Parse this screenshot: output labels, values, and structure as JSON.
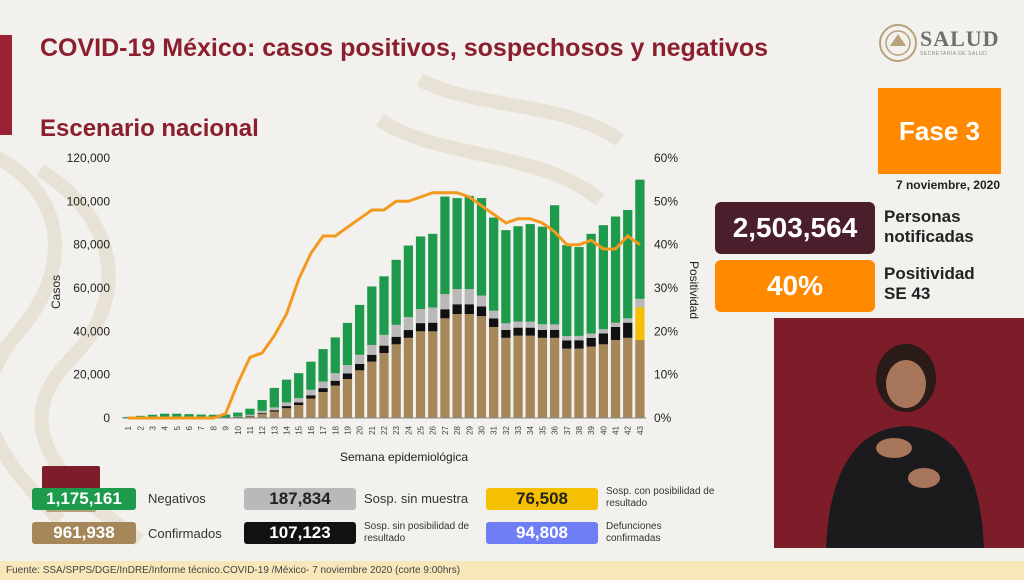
{
  "title": "COVID-19 México: casos positivos, sospechosos y negativos",
  "subtitle": "Escenario nacional",
  "logo": {
    "name": "SALUD",
    "sub": "SECRETARÍA DE SALUD",
    "icon": "eagle-seal-icon"
  },
  "phase": "Fase 3",
  "date": "7 noviembre, 2020",
  "stats": {
    "notified_value": "2,503,564",
    "notified_label_line1": "Personas",
    "notified_label_line2": "notificadas",
    "positivity_value": "40%",
    "positivity_label_line1": "Positividad",
    "positivity_label_line2": "SE 43"
  },
  "legend": {
    "negativos_value": "1,175,161",
    "negativos_label": "Negativos",
    "confirmados_value": "961,938",
    "confirmados_label": "Confirmados",
    "sosp_sin_muestra_value": "187,834",
    "sosp_sin_muestra_label": "Sosp. sin muestra",
    "sosp_sin_posibilidad_value": "107,123",
    "sosp_sin_posibilidad_label": "Sosp. sin posibilidad de resultado",
    "sosp_con_posibilidad_value": "76,508",
    "sosp_con_posibilidad_label": "Sosp. con posibilidad de resultado",
    "defunciones_value": "94,808",
    "defunciones_label": "Defunciones confirmadas"
  },
  "footer": "Fuente: SSA/SPPS/DGE/InDRE/Informe técnico.COVID-19 /México- 7 noviembre 2020 (corte 9:00hrs)",
  "colors": {
    "confirmados": "#a6875a",
    "sosp_sin_posibilidad": "#111111",
    "sosp_sin_muestra": "#b9b9b9",
    "negativos": "#1e9a4c",
    "sosp_con_posibilidad": "#f5c000",
    "positividad": "#f39a1e",
    "brand": "#8b1f2e"
  },
  "chart_data": {
    "type": "bar",
    "stacked": true,
    "xlabel": "Semana epidemiológica",
    "ylabel": "Casos",
    "ylabel_right": "Positividad",
    "ylim": [
      0,
      120000
    ],
    "ylim_right": [
      0,
      60
    ],
    "y_ticks": [
      "0",
      "20,000",
      "40,000",
      "60,000",
      "80,000",
      "100,000",
      "120,000"
    ],
    "y_ticks_right": [
      "0%",
      "10%",
      "20%",
      "30%",
      "40%",
      "50%",
      "60%"
    ],
    "categories": [
      "1",
      "2",
      "3",
      "4",
      "5",
      "6",
      "7",
      "8",
      "9",
      "10",
      "11",
      "12",
      "13",
      "14",
      "15",
      "16",
      "17",
      "18",
      "19",
      "20",
      "21",
      "22",
      "23",
      "24",
      "25",
      "26",
      "27",
      "28",
      "29",
      "30",
      "31",
      "32",
      "33",
      "34",
      "35",
      "36",
      "37",
      "38",
      "39",
      "40",
      "41",
      "42",
      "43"
    ],
    "series": [
      {
        "key": "confirmados",
        "values": [
          0,
          0,
          0,
          0,
          0,
          0,
          0,
          0,
          100,
          300,
          800,
          2000,
          3000,
          4500,
          6000,
          9000,
          12000,
          15000,
          18000,
          22000,
          26000,
          30000,
          34000,
          37000,
          40000,
          40000,
          46000,
          48000,
          48000,
          47000,
          42000,
          37000,
          38000,
          38000,
          37000,
          37000,
          32000,
          32000,
          33000,
          34000,
          36000,
          37000,
          36000
        ]
      },
      {
        "key": "sosp_sin_posibilidad",
        "values": [
          0,
          0,
          0,
          0,
          0,
          0,
          0,
          0,
          0,
          100,
          200,
          400,
          600,
          1000,
          1200,
          1500,
          1800,
          2200,
          2600,
          3000,
          3200,
          3400,
          3500,
          3600,
          3800,
          4000,
          4200,
          4500,
          4500,
          4500,
          4000,
          3700,
          3700,
          3700,
          3700,
          3700,
          3800,
          3900,
          4000,
          5000,
          6000,
          7000,
          0
        ]
      },
      {
        "key": "sosp_con_posibilidad",
        "values": [
          0,
          0,
          0,
          0,
          0,
          0,
          0,
          0,
          0,
          0,
          0,
          0,
          0,
          0,
          0,
          0,
          0,
          0,
          0,
          0,
          0,
          0,
          0,
          0,
          0,
          0,
          0,
          0,
          0,
          0,
          0,
          0,
          0,
          0,
          0,
          0,
          0,
          0,
          0,
          0,
          0,
          0,
          15000
        ]
      },
      {
        "key": "sosp_sin_muestra",
        "values": [
          0,
          0,
          0,
          0,
          0,
          0,
          0,
          0,
          100,
          300,
          500,
          900,
          1300,
          1700,
          2000,
          2500,
          3000,
          3500,
          3800,
          4200,
          4500,
          5000,
          5500,
          6000,
          6500,
          7000,
          7000,
          7000,
          7000,
          5000,
          3500,
          3000,
          2800,
          2800,
          2600,
          2500,
          2000,
          2000,
          2000,
          2000,
          2000,
          2000,
          4000
        ]
      },
      {
        "key": "negativos",
        "values": [
          500,
          1000,
          1500,
          2000,
          2000,
          1800,
          1600,
          1500,
          1400,
          1800,
          2800,
          5000,
          9000,
          10500,
          11500,
          13000,
          15000,
          16500,
          19500,
          23000,
          27000,
          27000,
          30000,
          33000,
          33500,
          34000,
          45000,
          42000,
          43000,
          45000,
          43000,
          43000,
          44000,
          45000,
          45000,
          55000,
          42000,
          41000,
          46000,
          48000,
          49000,
          50000,
          55000
        ]
      }
    ],
    "positivity_line": {
      "name": "Positividad",
      "values": [
        0,
        0,
        0,
        0,
        0,
        0,
        0,
        0,
        1,
        8,
        14,
        15,
        19,
        24,
        32,
        38,
        42,
        42,
        44,
        46,
        48,
        48,
        50,
        50,
        51,
        52,
        52,
        52,
        51,
        49,
        47,
        45,
        46,
        46,
        45,
        43,
        40,
        40,
        41,
        39,
        39,
        42,
        40
      ]
    },
    "colors": [
      "#a6875a",
      "#111111",
      "#f5c000",
      "#b9b9b9",
      "#1e9a4c"
    ]
  }
}
